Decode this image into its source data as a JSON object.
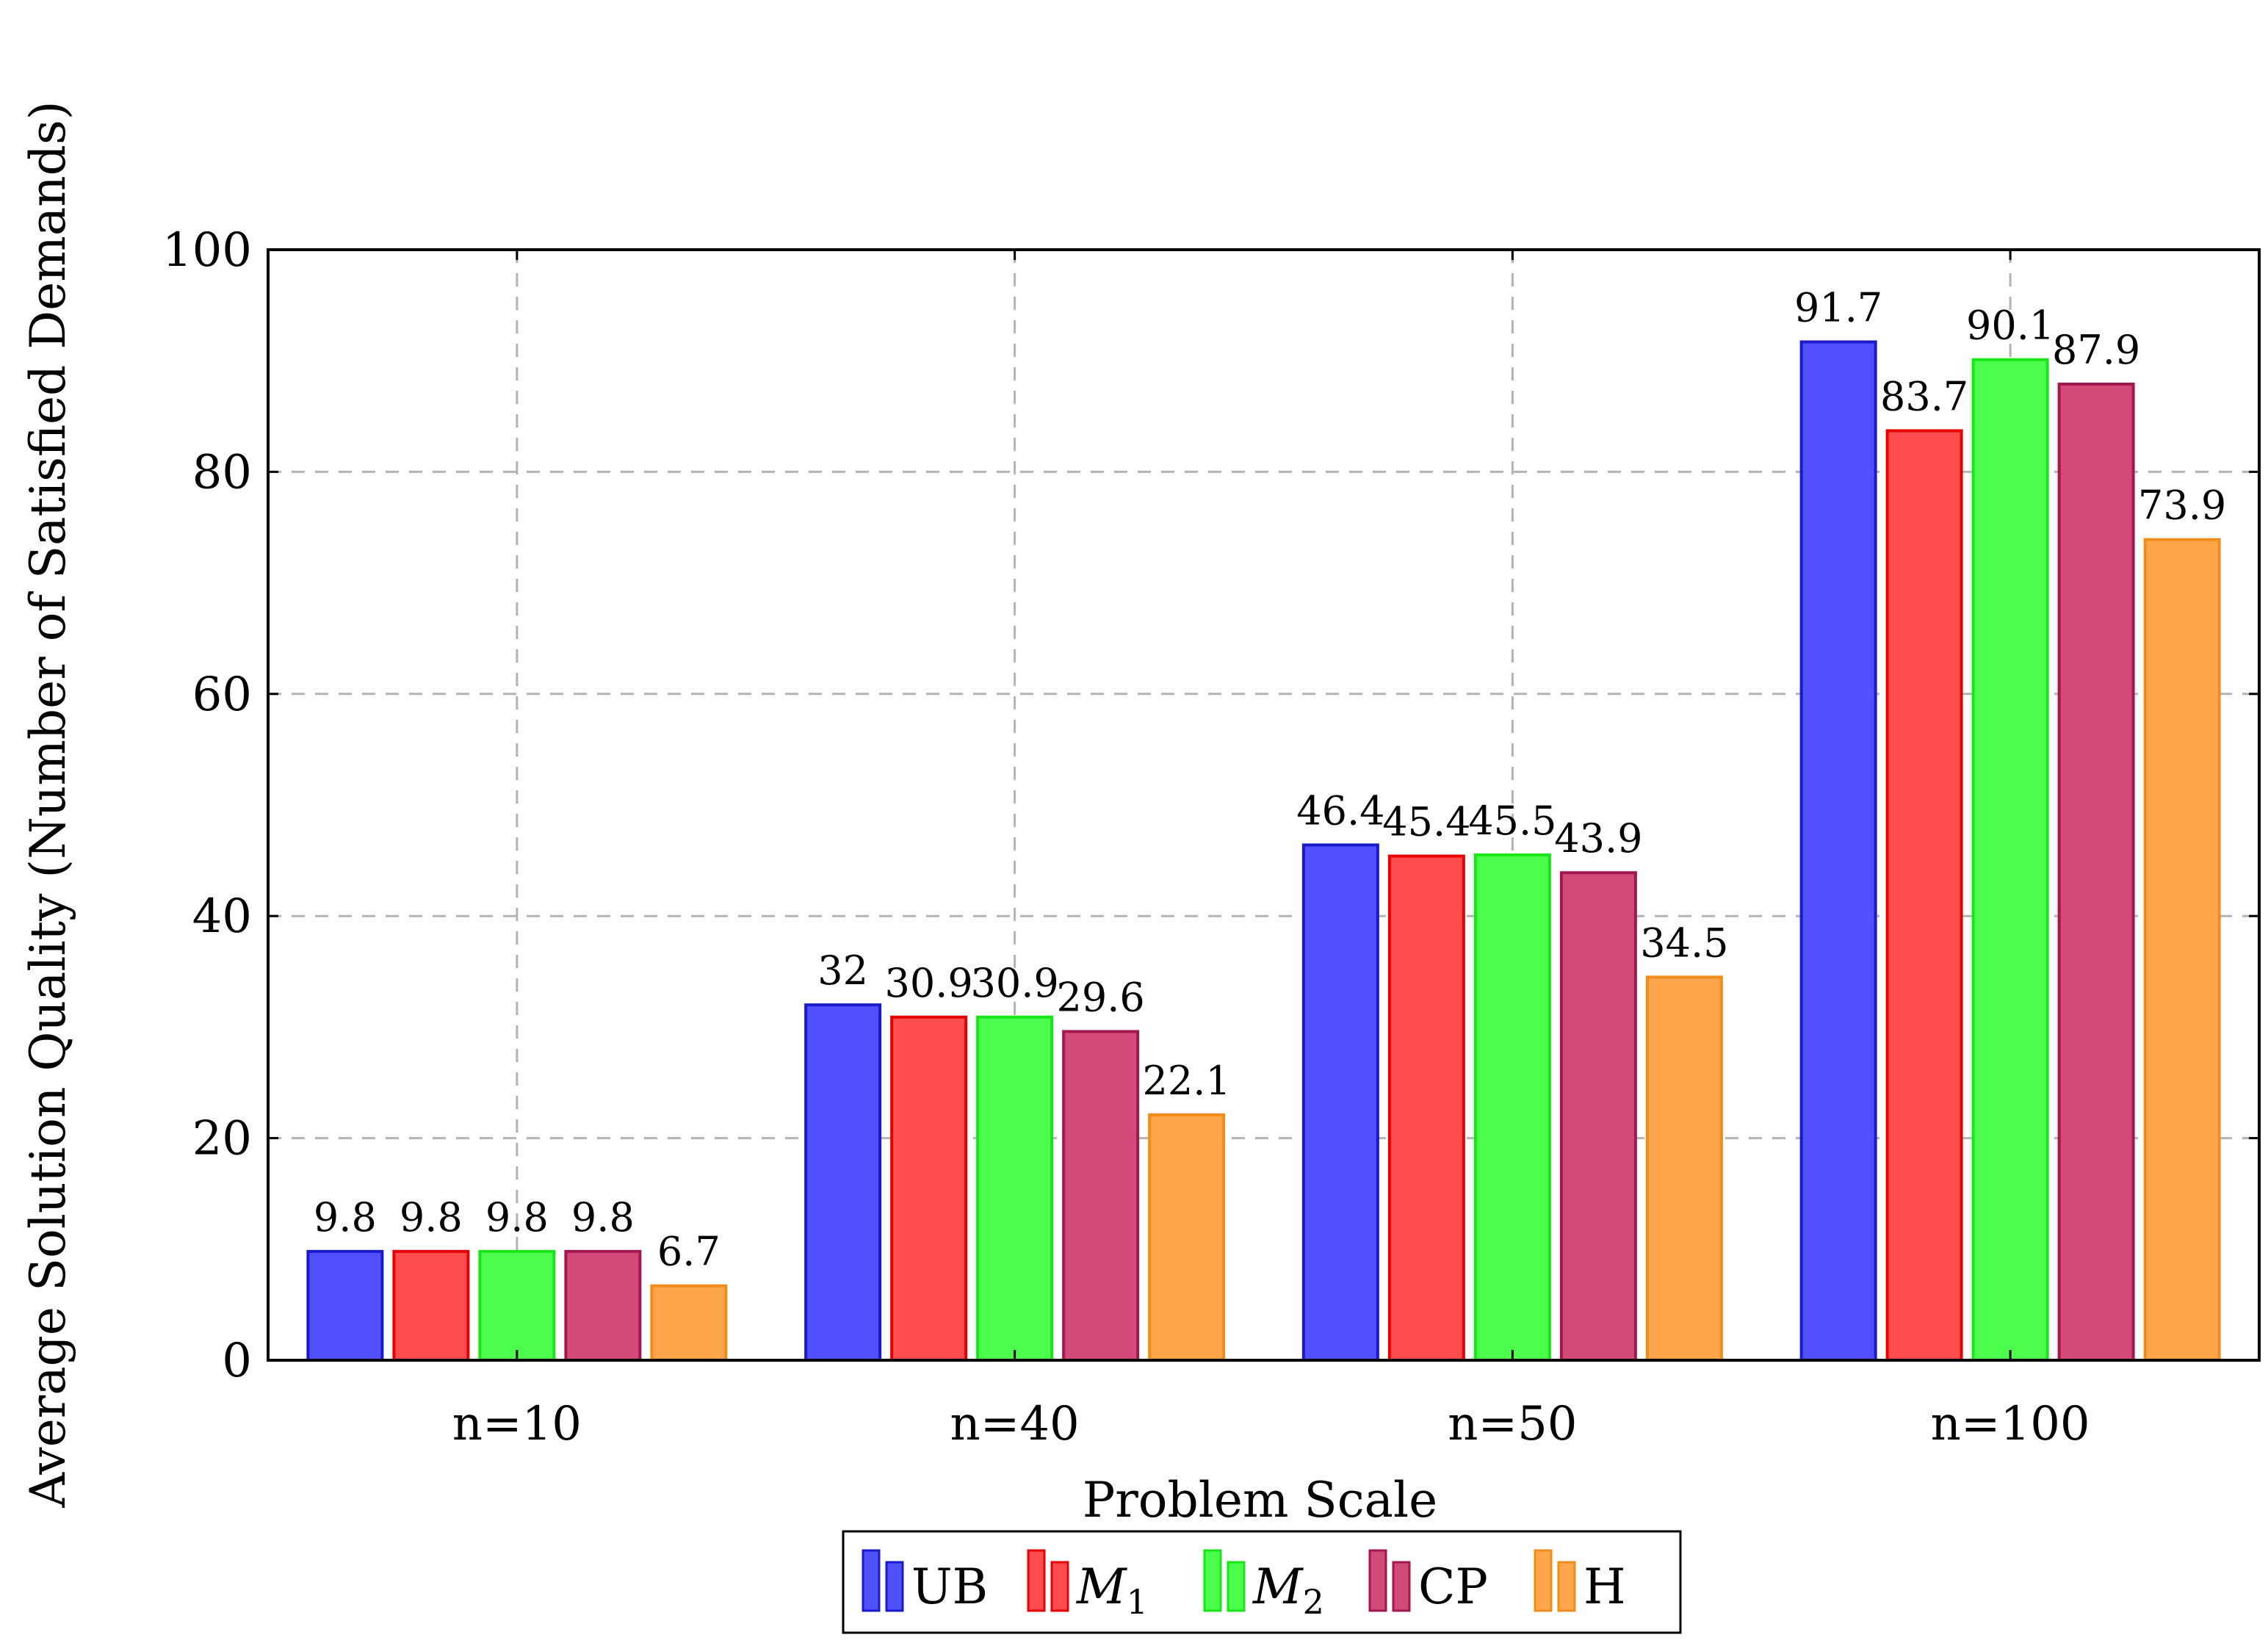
{
  "chart_data": {
    "type": "bar",
    "title": "",
    "xlabel": "Problem Scale",
    "ylabel": "Average Solution Quality (Number of Satisfied Demands)",
    "ylim": [
      0,
      100
    ],
    "yticks": [
      0,
      20,
      40,
      60,
      80,
      100
    ],
    "grid": true,
    "legend_position": "bottom-center",
    "categories": [
      "n=10",
      "n=40",
      "n=50",
      "n=100"
    ],
    "series": [
      {
        "name": "UB",
        "name_sub": "",
        "fill": "#5050ff",
        "stroke": "#1a1acc",
        "values": [
          9.8,
          32,
          46.4,
          91.7
        ]
      },
      {
        "name": "M",
        "name_sub": "1",
        "fill": "#ff4d4d",
        "stroke": "#e60000",
        "values": [
          9.8,
          30.9,
          45.4,
          83.7
        ]
      },
      {
        "name": "M",
        "name_sub": "2",
        "fill": "#4dff4d",
        "stroke": "#19e619",
        "values": [
          9.8,
          30.9,
          45.5,
          90.1
        ]
      },
      {
        "name": "CP",
        "name_sub": "",
        "fill": "#d24b78",
        "stroke": "#a3174f",
        "values": [
          9.8,
          29.6,
          43.9,
          87.9
        ]
      },
      {
        "name": "H",
        "name_sub": "",
        "fill": "#ffa64d",
        "stroke": "#f08c1a",
        "values": [
          6.7,
          22.1,
          34.5,
          73.9
        ]
      }
    ],
    "data_labels": [
      [
        "9.8",
        "32",
        "46.4",
        "91.7"
      ],
      [
        "9.8",
        "30.9",
        "45.4",
        "83.7"
      ],
      [
        "9.8",
        "30.9",
        "45.5",
        "90.1"
      ],
      [
        "9.8",
        "29.6",
        "43.9",
        "87.9"
      ],
      [
        "6.7",
        "22.1",
        "34.5",
        "73.9"
      ]
    ]
  }
}
